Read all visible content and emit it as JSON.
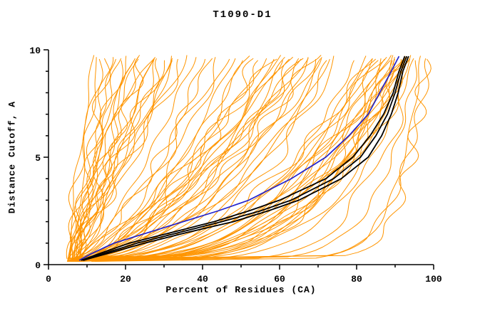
{
  "chart_data": {
    "type": "line",
    "title": "T1090-D1",
    "xlabel": "Percent of Residues (CA)",
    "ylabel": "Distance Cutoff, A",
    "xlim": [
      0,
      100
    ],
    "ylim": [
      0,
      10
    ],
    "x_major_ticks": [
      0,
      20,
      40,
      60,
      80,
      100
    ],
    "x_minor_step": 10,
    "y_major_ticks": [
      0,
      5,
      10
    ],
    "y_minor_step": 1,
    "grid": false,
    "legend_position": "none",
    "colors": {
      "ensemble": "#ff9500",
      "best_models": "#000000",
      "reference_model": "#2222cc",
      "axis": "#000000"
    },
    "ensemble_curves": [
      [
        5,
        12,
        1.25
      ],
      [
        6,
        13,
        1.05
      ],
      [
        5,
        14,
        1.4
      ],
      [
        7,
        15,
        0.9
      ],
      [
        6,
        16,
        1.15
      ],
      [
        8,
        17,
        1.3
      ],
      [
        5,
        18,
        0.85
      ],
      [
        7,
        19,
        1.0
      ],
      [
        6,
        20,
        1.2
      ],
      [
        8,
        21,
        0.95
      ],
      [
        5,
        22,
        1.1
      ],
      [
        7,
        23,
        1.3
      ],
      [
        6,
        24,
        0.9
      ],
      [
        8,
        25,
        1.05
      ],
      [
        5,
        26,
        1.2
      ],
      [
        7,
        27,
        0.95
      ],
      [
        6,
        28,
        1.1
      ],
      [
        8,
        29,
        0.9
      ],
      [
        5,
        30,
        1.0
      ],
      [
        7,
        31,
        1.18
      ],
      [
        6,
        32,
        0.82
      ],
      [
        8,
        33,
        1.0
      ],
      [
        5,
        34,
        1.12
      ],
      [
        7,
        35,
        0.92
      ],
      [
        6,
        36,
        1.02
      ],
      [
        6,
        38,
        0.7
      ],
      [
        8,
        40,
        0.55
      ],
      [
        5,
        42,
        0.66
      ],
      [
        7,
        44,
        0.5
      ],
      [
        6,
        46,
        0.74
      ],
      [
        8,
        48,
        0.6
      ],
      [
        5,
        50,
        0.46
      ],
      [
        7,
        52,
        0.7
      ],
      [
        6,
        54,
        0.52
      ],
      [
        8,
        56,
        0.64
      ],
      [
        5,
        58,
        0.42
      ],
      [
        7,
        60,
        0.6
      ],
      [
        6,
        62,
        0.5
      ],
      [
        8,
        64,
        0.46
      ],
      [
        5,
        66,
        0.56
      ],
      [
        7,
        68,
        0.44
      ],
      [
        6,
        70,
        0.5
      ],
      [
        8,
        72,
        0.4
      ],
      [
        5,
        74,
        0.48
      ],
      [
        7,
        75,
        0.38
      ],
      [
        6,
        57,
        0.72
      ],
      [
        8,
        61,
        0.68
      ],
      [
        5,
        65,
        0.62
      ],
      [
        7,
        69,
        0.58
      ],
      [
        6,
        71,
        0.52
      ],
      [
        8,
        73,
        0.45
      ],
      [
        5,
        67,
        0.66
      ],
      [
        7,
        63,
        0.74
      ],
      [
        6,
        59,
        0.78
      ],
      [
        8,
        66,
        0.7
      ],
      [
        6,
        80,
        0.35
      ],
      [
        8,
        82,
        0.3
      ],
      [
        5,
        84,
        0.32
      ],
      [
        7,
        86,
        0.28
      ],
      [
        6,
        88,
        0.26
      ],
      [
        8,
        90,
        0.24
      ],
      [
        5,
        91,
        0.3
      ],
      [
        7,
        92,
        0.27
      ],
      [
        6,
        93,
        0.25
      ],
      [
        8,
        94,
        0.22
      ],
      [
        5,
        85,
        0.38
      ],
      [
        7,
        87,
        0.33
      ],
      [
        6,
        89,
        0.29
      ],
      [
        8,
        91,
        0.26
      ],
      [
        5,
        92,
        0.24
      ],
      [
        7,
        93,
        0.28
      ],
      [
        6,
        90,
        0.34
      ],
      [
        8,
        88,
        0.4
      ],
      [
        5,
        86,
        0.42
      ],
      [
        7,
        84,
        0.44
      ],
      [
        6,
        95,
        0.2
      ],
      [
        8,
        94,
        0.26
      ],
      [
        5,
        93,
        0.3
      ],
      [
        7,
        91,
        0.34
      ],
      [
        6,
        89,
        0.38
      ],
      [
        10,
        97,
        0.08
      ],
      [
        12,
        99,
        0.1
      ],
      [
        9,
        96,
        0.12
      ],
      [
        15,
        98,
        0.07
      ],
      [
        11,
        95,
        0.16
      ]
    ],
    "black_curves": [
      {
        "y": [
          0.2,
          0.5,
          1,
          1.5,
          2,
          2.5,
          3,
          4,
          5,
          6,
          7,
          8,
          9,
          9.7
        ],
        "x": [
          9,
          14,
          23,
          34,
          45,
          55,
          63,
          74,
          81,
          85,
          88,
          90,
          91.5,
          93
        ]
      },
      {
        "y": [
          0.2,
          0.5,
          1,
          1.5,
          2,
          2.5,
          3,
          4,
          5,
          6,
          7,
          8,
          9,
          9.7
        ],
        "x": [
          9,
          15,
          25,
          36,
          48,
          57,
          65,
          76,
          83,
          86.5,
          89,
          90.8,
          92,
          93.5
        ]
      },
      {
        "y": [
          0.2,
          0.5,
          1,
          1.5,
          2,
          2.5,
          3,
          4,
          5,
          6,
          7,
          8,
          9,
          9.7
        ],
        "x": [
          8.5,
          13,
          21,
          32,
          43,
          52,
          60,
          72,
          79,
          83.5,
          87,
          89.5,
          91,
          92.5
        ]
      }
    ],
    "blue_curve": {
      "y": [
        0.2,
        0.5,
        1,
        1.5,
        2,
        2.5,
        3,
        4,
        5,
        6,
        7,
        8,
        9,
        9.7
      ],
      "x": [
        8,
        11,
        17,
        26,
        35,
        44,
        52,
        63,
        72,
        78,
        83,
        86,
        89,
        91
      ]
    }
  }
}
